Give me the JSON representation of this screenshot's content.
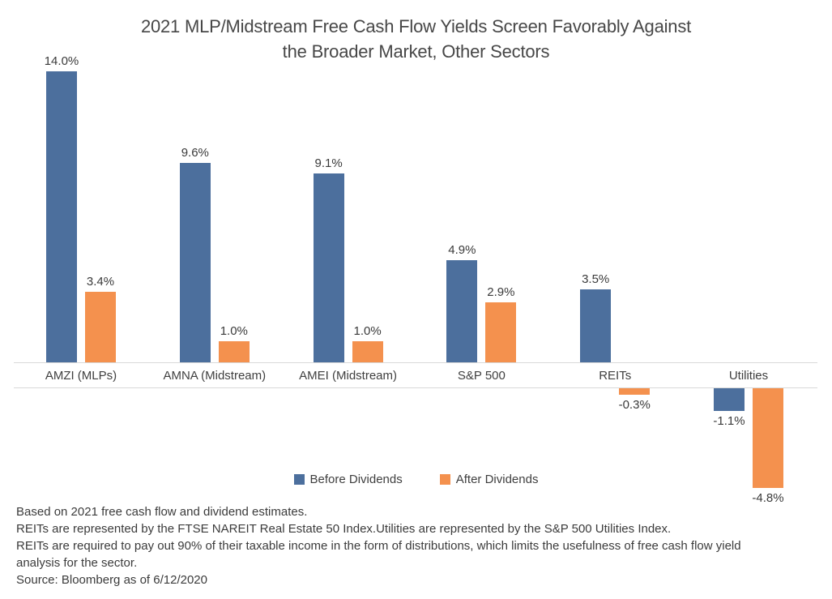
{
  "page": {
    "title_lines": [
      "2021 MLP/Midstream Free Cash Flow Yields Screen Favorably Against",
      "the Broader Market, Other Sectors"
    ],
    "notes": [
      "Based on 2021 free cash flow and dividend estimates.",
      "REITs are represented by the FTSE NAREIT Real Estate 50 Index.Utilities are represented by the S&P 500 Utilities Index.",
      "REITs are required to pay out 90% of their taxable income in the form of distributions, which limits the usefulness of free cash flow yield analysis for the sector.",
      "Source: Bloomberg as of 6/12/2020"
    ]
  },
  "chart_data": {
    "type": "bar",
    "title": "2021 MLP/Midstream Free Cash Flow Yields Screen Favorably Against the Broader Market, Other Sectors",
    "categories": [
      "AMZI (MLPs)",
      "AMNA (Midstream)",
      "AMEI (Midstream)",
      "S&P 500",
      "REITs",
      "Utilities"
    ],
    "series": [
      {
        "name": "Before Dividends",
        "color": "#4C6F9D",
        "values": [
          14.0,
          9.6,
          9.1,
          4.9,
          3.5,
          -1.1
        ],
        "labels": [
          "14.0%",
          "9.6%",
          "9.1%",
          "4.9%",
          "3.5%",
          "-1.1%"
        ]
      },
      {
        "name": "After Dividends",
        "color": "#F4914E",
        "values": [
          3.4,
          1.0,
          1.0,
          2.9,
          -0.3,
          -4.8
        ],
        "labels": [
          "3.4%",
          "1.0%",
          "1.0%",
          "2.9%",
          "-0.3%",
          "-4.8%"
        ]
      }
    ],
    "ylim": [
      -5.2,
      14.5
    ],
    "grid": "off",
    "y_axis_visible": false,
    "legend_position": "bottom",
    "data_labels": true,
    "units": "percent"
  }
}
